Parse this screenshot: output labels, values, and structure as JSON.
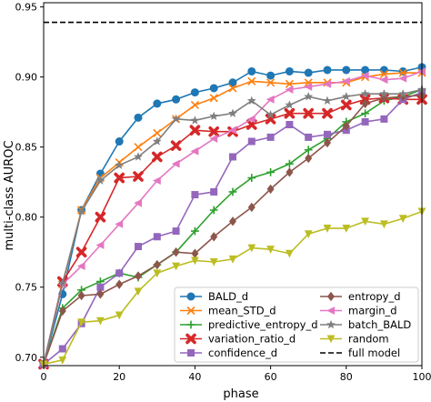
{
  "chart_data": {
    "type": "line",
    "xlabel": "phase",
    "ylabel": "multi-class AUROC",
    "xlim": [
      0,
      100
    ],
    "ylim": [
      0.694,
      0.953
    ],
    "xticks": [
      0,
      20,
      40,
      60,
      80,
      100
    ],
    "yticks": [
      0.7,
      0.75,
      0.8,
      0.85,
      0.9,
      0.95
    ],
    "x": [
      0,
      5,
      10,
      15,
      20,
      25,
      30,
      35,
      40,
      45,
      50,
      55,
      60,
      65,
      70,
      75,
      80,
      85,
      90,
      95,
      100
    ],
    "grid": false,
    "legend_placement": "lower-right",
    "legend_columns": 2,
    "series": [
      {
        "name": "BALD_d",
        "color": "#1f77b4",
        "marker": "circle",
        "values": [
          0.695,
          0.745,
          0.805,
          0.831,
          0.854,
          0.871,
          0.881,
          0.884,
          0.889,
          0.892,
          0.896,
          0.904,
          0.901,
          0.904,
          0.903,
          0.905,
          0.905,
          0.905,
          0.905,
          0.904,
          0.907
        ]
      },
      {
        "name": "mean_STD_d",
        "color": "#ff7f0e",
        "marker": "x",
        "values": [
          0.695,
          0.752,
          0.805,
          0.828,
          0.839,
          0.85,
          0.86,
          0.87,
          0.88,
          0.885,
          0.892,
          0.897,
          0.896,
          0.895,
          0.896,
          0.896,
          0.896,
          0.9,
          0.902,
          0.903,
          0.903
        ]
      },
      {
        "name": "predictive_entropy_d",
        "color": "#2ca02c",
        "marker": "plus",
        "values": [
          0.695,
          0.735,
          0.748,
          0.754,
          0.76,
          0.757,
          0.766,
          0.775,
          0.79,
          0.805,
          0.818,
          0.828,
          0.832,
          0.838,
          0.848,
          0.856,
          0.868,
          0.874,
          0.883,
          0.886,
          0.891
        ]
      },
      {
        "name": "variation_ratio_d",
        "color": "#d62728",
        "marker": "x-filled",
        "values": [
          0.695,
          0.754,
          0.775,
          0.8,
          0.828,
          0.829,
          0.843,
          0.851,
          0.862,
          0.861,
          0.861,
          0.866,
          0.87,
          0.874,
          0.874,
          0.874,
          0.88,
          0.884,
          0.885,
          0.884,
          0.884
        ]
      },
      {
        "name": "confidence_d",
        "color": "#9467bd",
        "marker": "square",
        "values": [
          0.695,
          0.706,
          0.724,
          0.75,
          0.76,
          0.779,
          0.786,
          0.79,
          0.816,
          0.818,
          0.843,
          0.854,
          0.857,
          0.866,
          0.857,
          0.859,
          0.862,
          0.868,
          0.87,
          0.884,
          0.889
        ]
      },
      {
        "name": "entropy_d",
        "color": "#8c564b",
        "marker": "diamond",
        "values": [
          0.695,
          0.733,
          0.744,
          0.745,
          0.752,
          0.758,
          0.766,
          0.775,
          0.774,
          0.786,
          0.797,
          0.807,
          0.82,
          0.832,
          0.842,
          0.853,
          0.865,
          0.881,
          0.885,
          0.886,
          0.887
        ]
      },
      {
        "name": "margin_d",
        "color": "#e377c2",
        "marker": "triangle-left",
        "values": [
          0.695,
          0.752,
          0.765,
          0.78,
          0.795,
          0.81,
          0.826,
          0.838,
          0.847,
          0.856,
          0.862,
          0.87,
          0.884,
          0.891,
          0.893,
          0.895,
          0.897,
          0.901,
          0.898,
          0.899,
          0.904
        ]
      },
      {
        "name": "batch_BALD",
        "color": "#7f7f7f",
        "marker": "star",
        "values": [
          0.695,
          0.753,
          0.804,
          0.826,
          0.837,
          0.843,
          0.854,
          0.87,
          0.869,
          0.872,
          0.874,
          0.883,
          0.873,
          0.88,
          0.886,
          0.883,
          0.886,
          0.888,
          0.888,
          0.888,
          0.891
        ]
      },
      {
        "name": "random",
        "color": "#bcbd22",
        "marker": "triangle-down",
        "values": [
          0.695,
          0.698,
          0.725,
          0.726,
          0.73,
          0.747,
          0.76,
          0.765,
          0.769,
          0.768,
          0.77,
          0.778,
          0.777,
          0.774,
          0.788,
          0.792,
          0.792,
          0.797,
          0.795,
          0.799,
          0.804
        ]
      },
      {
        "name": "full model",
        "color": "#000000",
        "style": "dashed",
        "constant": 0.939
      }
    ]
  }
}
